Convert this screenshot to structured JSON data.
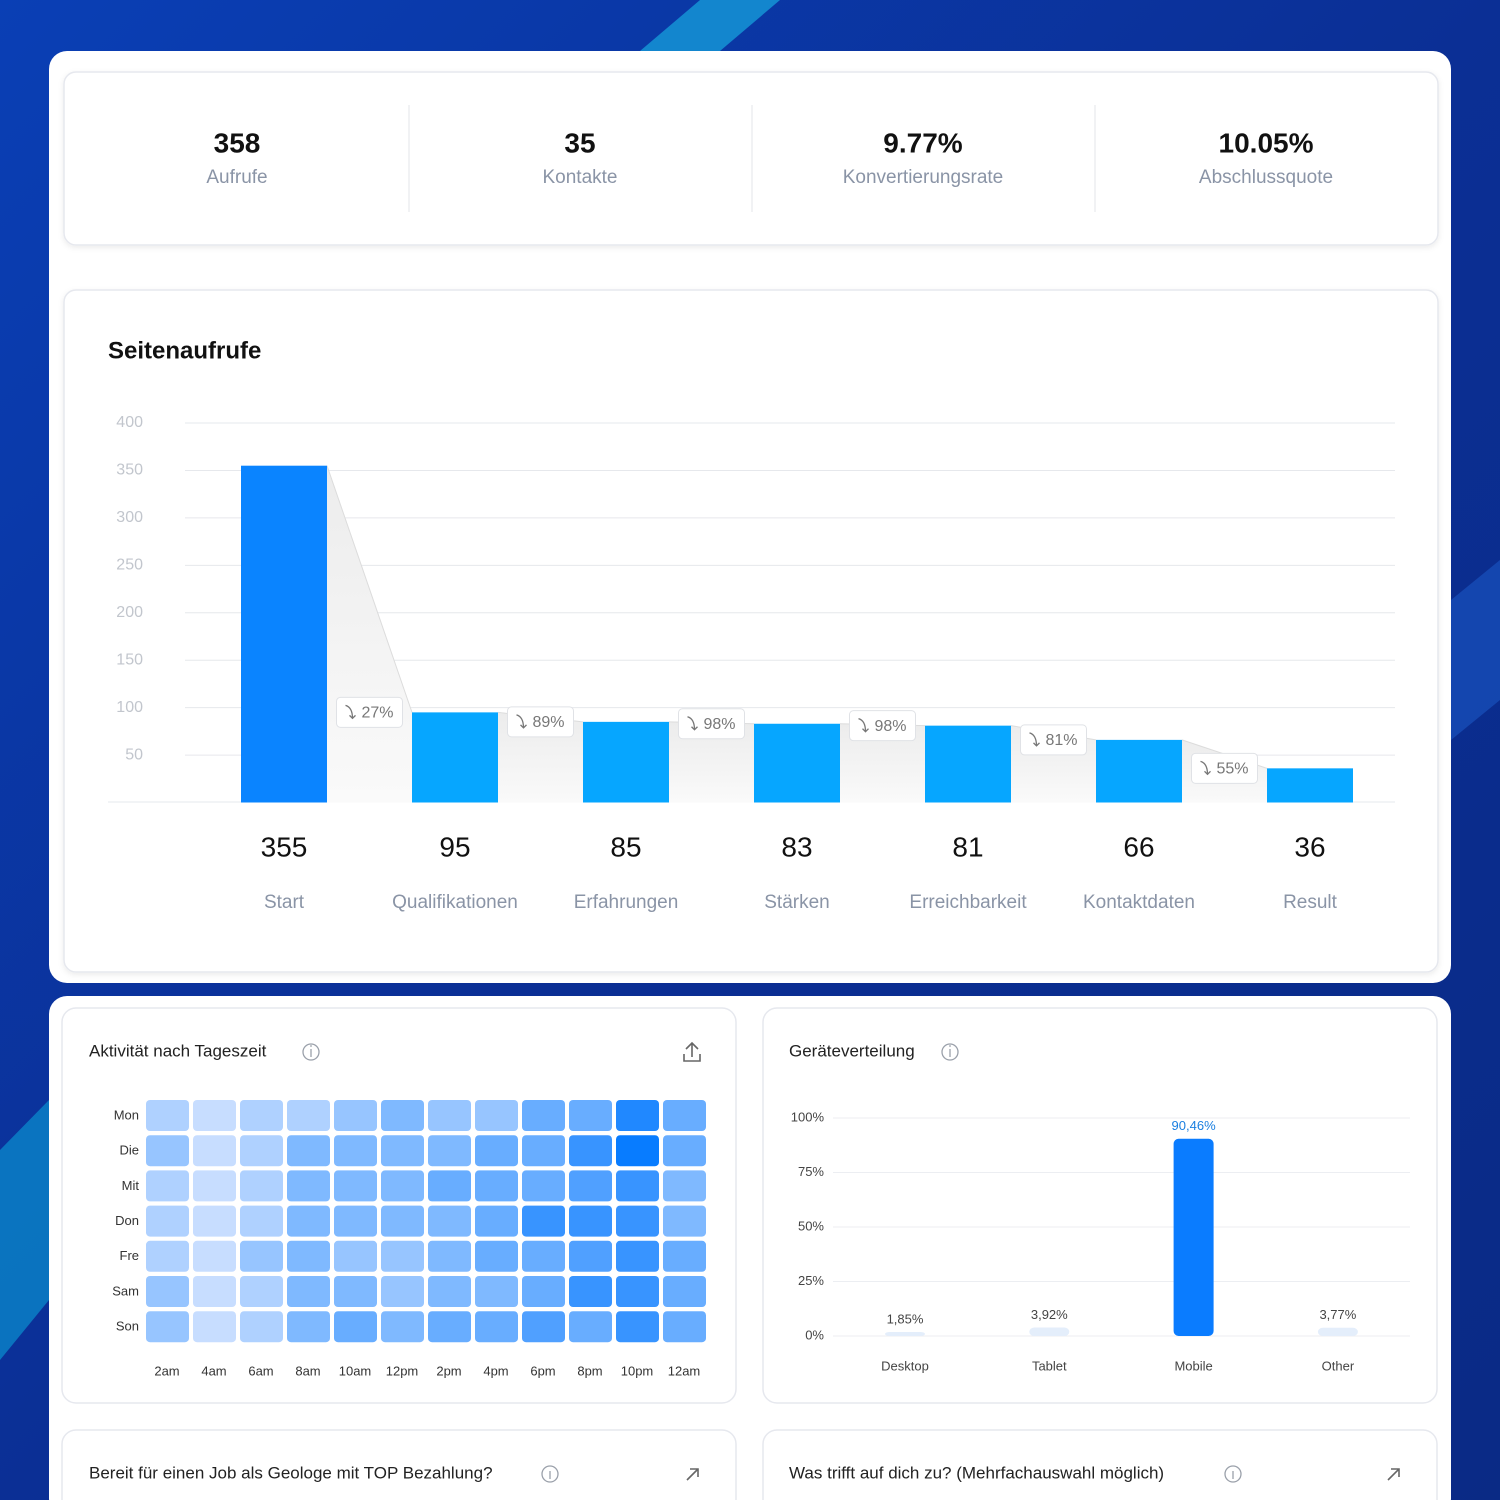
{
  "stats": [
    {
      "value": "358",
      "label": "Aufrufe"
    },
    {
      "value": "35",
      "label": "Kontakte"
    },
    {
      "value": "9.77%",
      "label": "Konvertierungsrate"
    },
    {
      "value": "10.05%",
      "label": "Abschlussquote"
    }
  ],
  "chart_data": [
    {
      "type": "funnel",
      "title": "Seitenaufrufe",
      "categories": [
        "Start",
        "Qualifikationen",
        "Erfahrungen",
        "Stärken",
        "Erreichbarkeit",
        "Kontaktdaten",
        "Result"
      ],
      "values": [
        355,
        95,
        85,
        83,
        81,
        66,
        36
      ],
      "colors": [
        "#0a84ff",
        "#06a6ff",
        "#06a6ff",
        "#06a6ff",
        "#06a6ff",
        "#06a6ff",
        "#06a6ff"
      ],
      "annotations": [
        "27%",
        "89%",
        "98%",
        "98%",
        "81%",
        "55%"
      ],
      "ylim": [
        0,
        400
      ],
      "yticks": [
        50,
        100,
        150,
        200,
        250,
        300,
        350,
        400
      ],
      "grid": true
    },
    {
      "type": "heatmap",
      "title": "Aktivität nach Tageszeit",
      "rows": [
        "Mon",
        "Die",
        "Mit",
        "Don",
        "Fre",
        "Sam",
        "Son"
      ],
      "columns": [
        "2am",
        "4am",
        "6am",
        "8am",
        "10am",
        "12pm",
        "2pm",
        "4pm",
        "6pm",
        "8pm",
        "10pm",
        "12am"
      ],
      "values": [
        [
          3,
          2,
          3,
          3,
          4,
          5,
          4,
          4,
          6,
          6,
          9,
          6
        ],
        [
          4,
          2,
          3,
          5,
          5,
          5,
          5,
          6,
          6,
          8,
          10,
          6
        ],
        [
          3,
          2,
          3,
          5,
          5,
          5,
          6,
          6,
          6,
          7,
          8,
          5
        ],
        [
          3,
          2,
          3,
          5,
          5,
          5,
          5,
          6,
          8,
          8,
          8,
          5
        ],
        [
          3,
          2,
          4,
          5,
          4,
          4,
          5,
          6,
          6,
          7,
          8,
          6
        ],
        [
          4,
          2,
          3,
          5,
          5,
          4,
          5,
          5,
          6,
          8,
          8,
          6
        ],
        [
          4,
          2,
          3,
          5,
          6,
          5,
          6,
          6,
          7,
          6,
          8,
          6
        ]
      ]
    },
    {
      "type": "bar",
      "title": "Geräteverteilung",
      "categories": [
        "Desktop",
        "Tablet",
        "Mobile",
        "Other"
      ],
      "values": [
        1.85,
        3.92,
        90.46,
        3.77
      ],
      "value_labels": [
        "1,85%",
        "3,92%",
        "90,46%",
        "3,77%"
      ],
      "colors": [
        "#e4eefb",
        "#e4eefb",
        "#0a7cff",
        "#e4eefb"
      ],
      "ylim": [
        0,
        100
      ],
      "yticks": [
        {
          "value": 0,
          "label": "0%"
        },
        {
          "value": 25,
          "label": "25%"
        },
        {
          "value": 50,
          "label": "50%"
        },
        {
          "value": 75,
          "label": "75%"
        },
        {
          "value": 100,
          "label": "100%"
        }
      ],
      "grid": true
    }
  ],
  "cards": [
    {
      "title": "Bereit für einen Job als Geologe mit TOP Bezahlung?"
    },
    {
      "title": "Was trifft auf dich zu? (Mehrfachauswahl möglich)"
    }
  ]
}
